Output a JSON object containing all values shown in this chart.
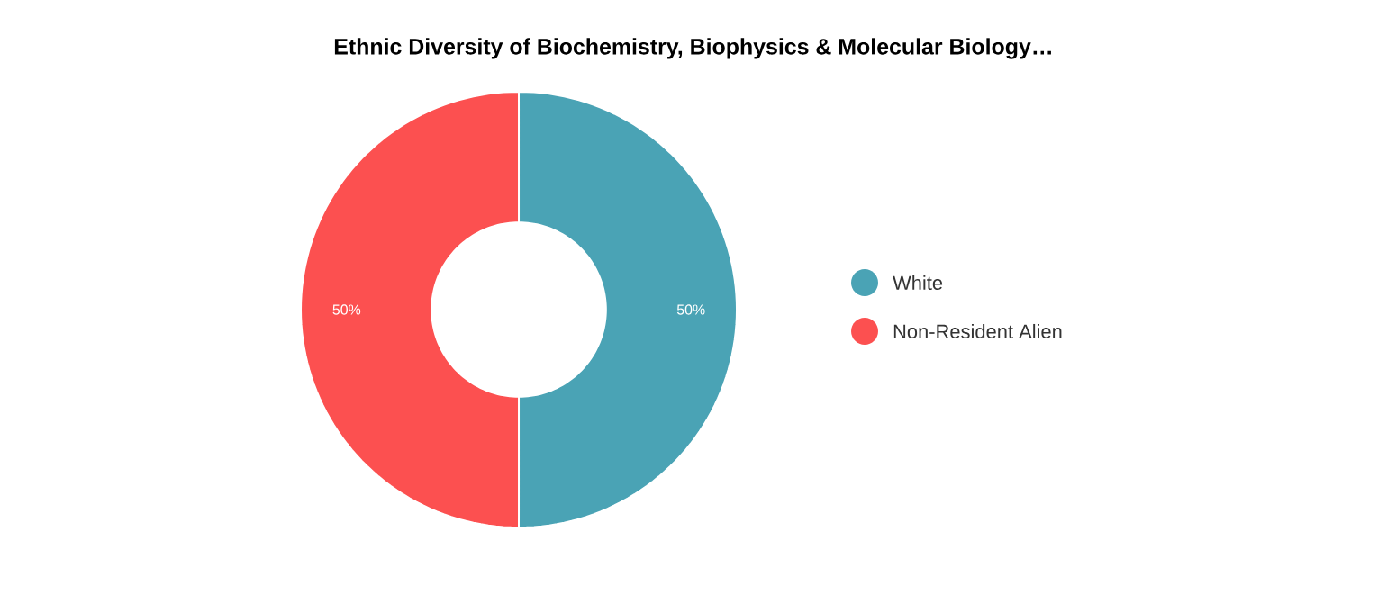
{
  "chart_data": {
    "type": "donut",
    "title": "Ethnic Diversity of Biochemistry, Biophysics & Molecular Biology…",
    "categories": [
      "White",
      "Non-Resident Alien"
    ],
    "values": [
      50,
      50
    ],
    "colors": [
      "#4aa3b5",
      "#fc5050"
    ],
    "value_labels": [
      "50%",
      "50%"
    ],
    "legend": "right"
  }
}
